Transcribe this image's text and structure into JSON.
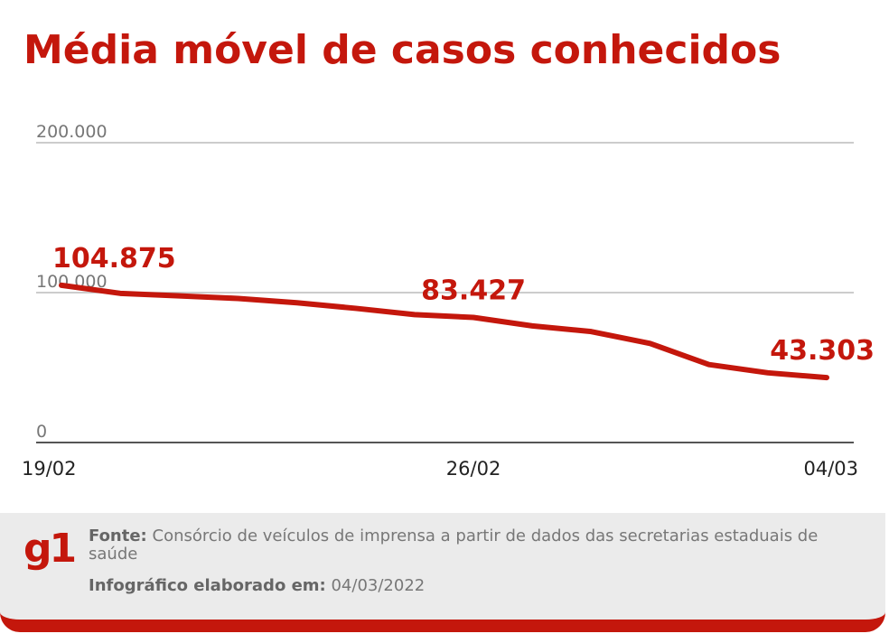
{
  "chart_data": {
    "type": "line",
    "title": "Média móvel de casos conhecidos",
    "categories": [
      "19/02",
      null,
      null,
      null,
      null,
      null,
      null,
      "26/02",
      null,
      null,
      null,
      null,
      null,
      "04/03"
    ],
    "series": [
      {
        "name": "Média móvel",
        "color": "#c4170c",
        "values": [
          104875,
          99500,
          97800,
          96100,
          93200,
          89500,
          85300,
          83427,
          77800,
          74000,
          66100,
          52000,
          46500,
          43303
        ],
        "value_labels": [
          "104.875",
          null,
          null,
          null,
          null,
          null,
          null,
          "83.427",
          null,
          null,
          null,
          null,
          null,
          "43.303"
        ]
      }
    ],
    "ylim": [
      0,
      200000
    ],
    "yticks": [
      0,
      {
        "value": 100000,
        "label": "100.000"
      },
      {
        "value": 200000,
        "label": "200.000"
      }
    ],
    "grid": true
  },
  "footer": {
    "logo": "g1",
    "source_label": "Fonte:",
    "source": "Consórcio de veículos de imprensa a partir de dados das secretarias estaduais de saúde",
    "date_label": "Infográfico elaborado em:",
    "date": "04/03/2022"
  }
}
